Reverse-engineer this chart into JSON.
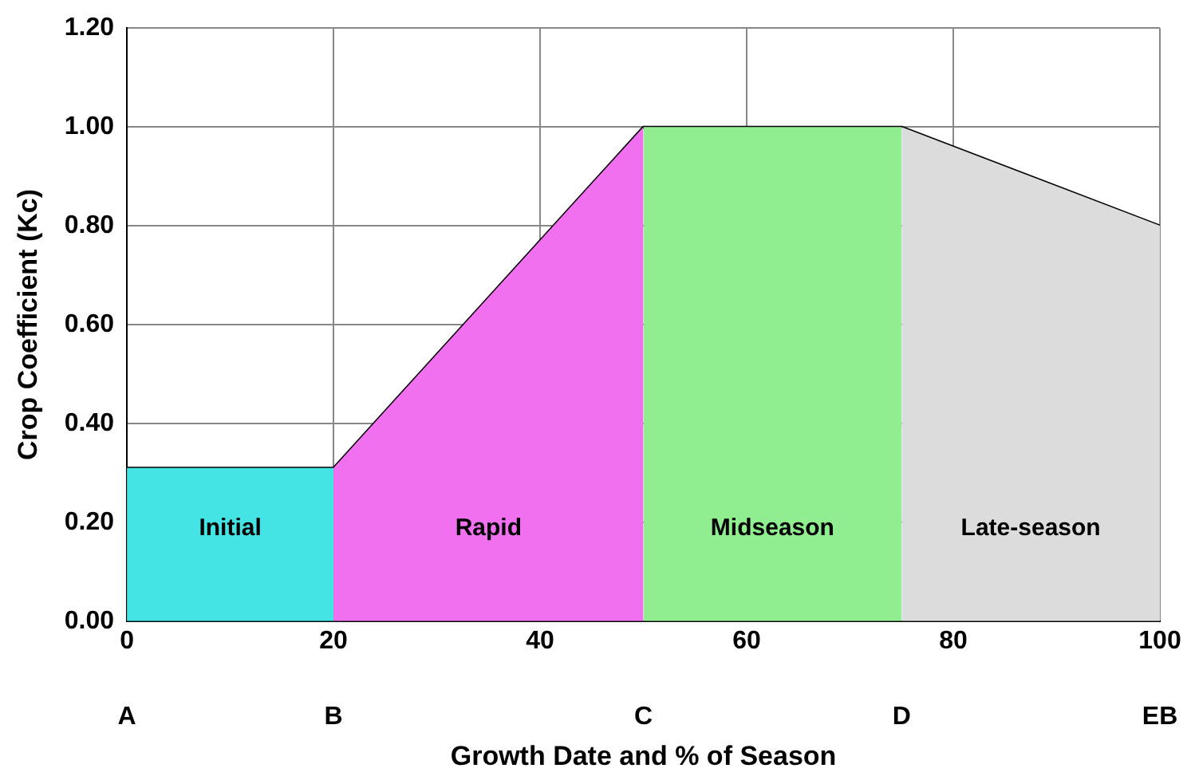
{
  "chart_data": {
    "type": "area",
    "xlabel": "Growth Date and % of Season",
    "ylabel": "Crop Coefficient (Kc)",
    "xlim": [
      0,
      100
    ],
    "xticks": [
      0,
      20,
      40,
      60,
      80,
      100
    ],
    "ylim": [
      0,
      1.2
    ],
    "yticks": [
      {
        "value": 0,
        "label": "0.00"
      },
      {
        "value": 0.2,
        "label": "0.20"
      },
      {
        "value": 0.4,
        "label": "0.40"
      },
      {
        "value": 0.6,
        "label": "0.60"
      },
      {
        "value": 0.8,
        "label": "0.80"
      },
      {
        "value": 1,
        "label": "1.00"
      },
      {
        "value": 1.2,
        "label": "1.20"
      }
    ],
    "grid": true,
    "legend": false,
    "marker": "none",
    "series": [
      {
        "name": "Initial",
        "color": "#44e4e4",
        "x": [
          0,
          20
        ],
        "values": [
          0.31,
          0.31
        ]
      },
      {
        "name": "Rapid",
        "color": "#f070f0",
        "x": [
          20,
          50
        ],
        "values": [
          0.31,
          1.0
        ]
      },
      {
        "name": "Midseason",
        "color": "#90ee90",
        "x": [
          50,
          75
        ],
        "values": [
          1.0,
          1.0
        ]
      },
      {
        "name": "Late-season",
        "color": "#dcdcdc",
        "x": [
          75,
          100
        ],
        "values": [
          1.0,
          0.8
        ]
      },
      {
        "type": "line",
        "color": "#000000",
        "x": [
          0,
          20,
          50,
          75,
          100
        ],
        "values": [
          0.31,
          0.31,
          1.0,
          1.0,
          0.8
        ]
      }
    ],
    "annotations": [
      "A",
      "B",
      "C",
      "D",
      "EB"
    ]
  }
}
